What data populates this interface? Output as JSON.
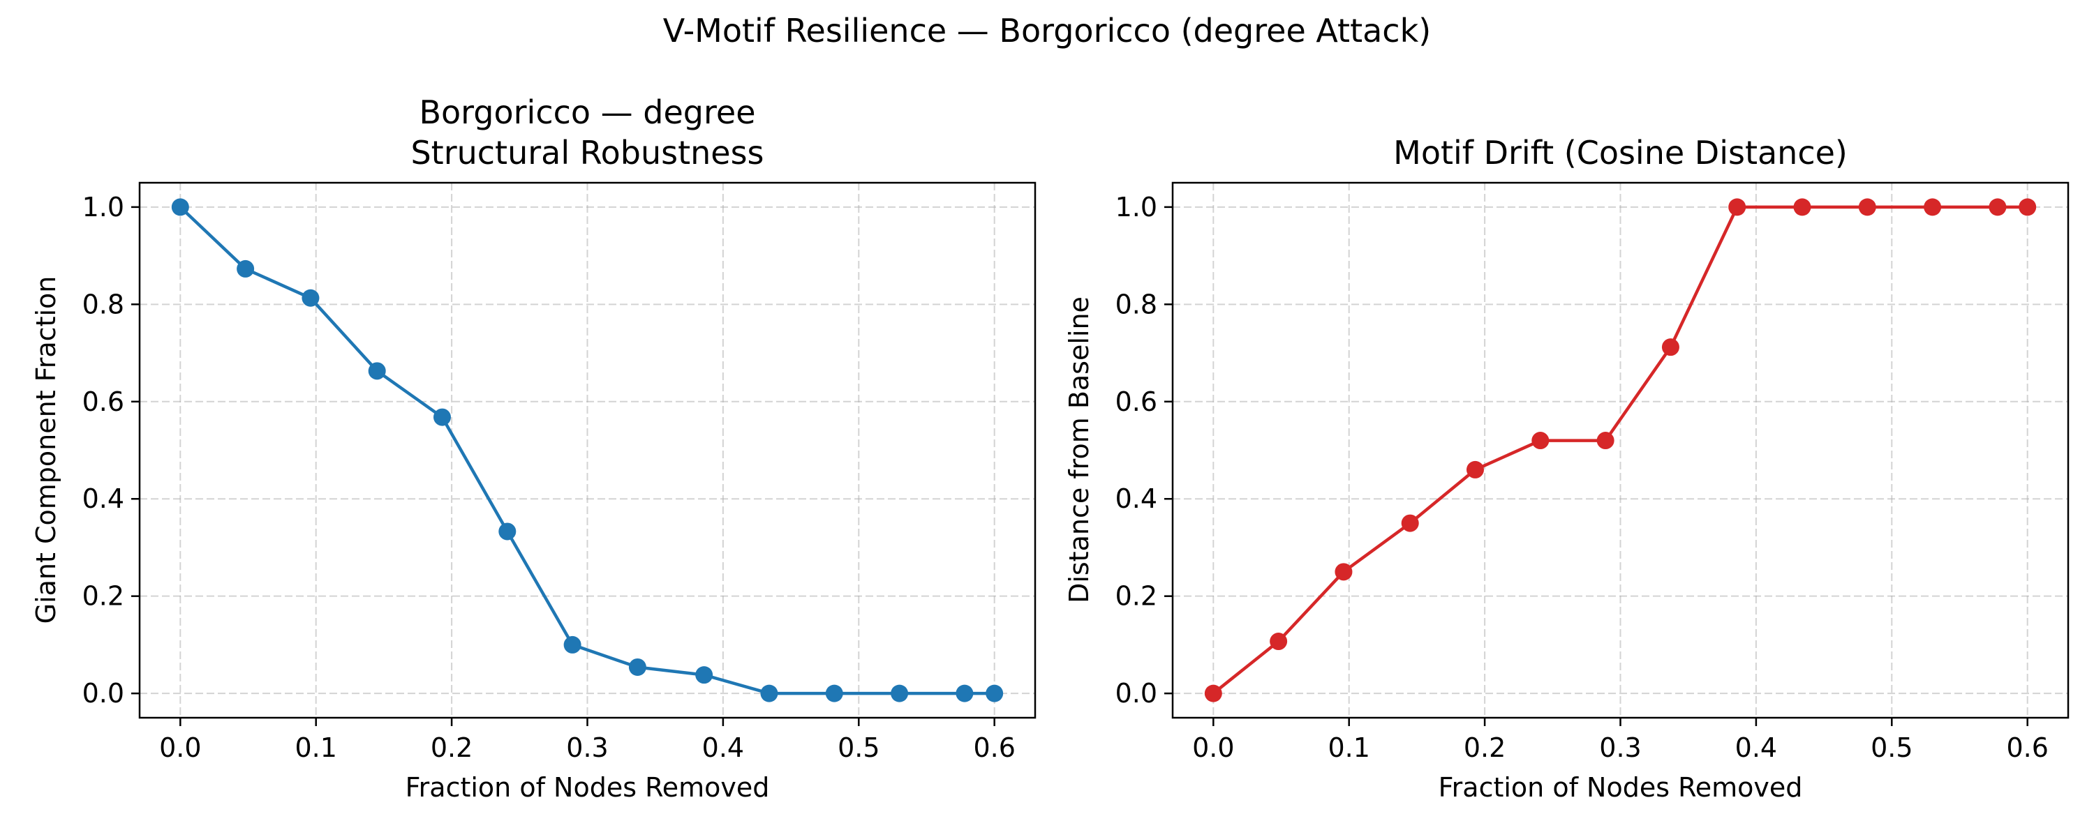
{
  "figure": {
    "suptitle": "V-Motif Resilience — Borgoricco (degree Attack)"
  },
  "chart_data": [
    {
      "type": "line",
      "title_line1": "Borgoricco — degree",
      "title_line2": "Structural Robustness",
      "xlabel": "Fraction of Nodes Removed",
      "ylabel": "Giant Component Fraction",
      "xlim": [
        -0.03,
        0.63
      ],
      "ylim": [
        -0.05,
        1.05
      ],
      "xticks": [
        0.0,
        0.1,
        0.2,
        0.3,
        0.4,
        0.5,
        0.6
      ],
      "xtick_labels": [
        "0.0",
        "0.1",
        "0.2",
        "0.3",
        "0.4",
        "0.5",
        "0.6"
      ],
      "yticks": [
        0.0,
        0.2,
        0.4,
        0.6,
        0.8,
        1.0
      ],
      "ytick_labels": [
        "0.0",
        "0.2",
        "0.4",
        "0.6",
        "0.8",
        "1.0"
      ],
      "grid": true,
      "color": "#1f77b4",
      "series": [
        {
          "x": [
            0.0,
            0.048,
            0.096,
            0.145,
            0.193,
            0.241,
            0.289,
            0.337,
            0.386,
            0.434,
            0.482,
            0.53,
            0.578,
            0.6
          ],
          "y": [
            1.0,
            0.873,
            0.813,
            0.663,
            0.568,
            0.333,
            0.1,
            0.054,
            0.038,
            0.0,
            0.0,
            0.0,
            0.0,
            0.0
          ]
        }
      ]
    },
    {
      "type": "line",
      "title_line1": "Motif Drift (Cosine Distance)",
      "title_line2": "",
      "xlabel": "Fraction of Nodes Removed",
      "ylabel": "Distance from Baseline",
      "xlim": [
        -0.03,
        0.63
      ],
      "ylim": [
        -0.05,
        1.05
      ],
      "xticks": [
        0.0,
        0.1,
        0.2,
        0.3,
        0.4,
        0.5,
        0.6
      ],
      "xtick_labels": [
        "0.0",
        "0.1",
        "0.2",
        "0.3",
        "0.4",
        "0.5",
        "0.6"
      ],
      "yticks": [
        0.0,
        0.2,
        0.4,
        0.6,
        0.8,
        1.0
      ],
      "ytick_labels": [
        "0.0",
        "0.2",
        "0.4",
        "0.6",
        "0.8",
        "1.0"
      ],
      "grid": true,
      "color": "#d62728",
      "series": [
        {
          "x": [
            0.0,
            0.048,
            0.096,
            0.145,
            0.193,
            0.241,
            0.289,
            0.337,
            0.386,
            0.434,
            0.482,
            0.53,
            0.578,
            0.6
          ],
          "y": [
            0.0,
            0.107,
            0.25,
            0.35,
            0.46,
            0.52,
            0.52,
            0.712,
            1.0,
            1.0,
            1.0,
            1.0,
            1.0,
            1.0
          ]
        }
      ]
    }
  ]
}
